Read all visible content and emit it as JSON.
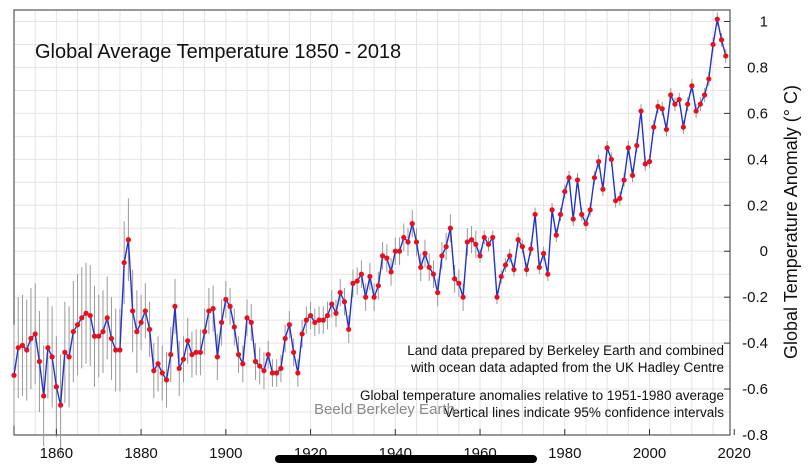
{
  "chart_data": {
    "type": "line",
    "title": "Global Average Temperature 1850 - 2018",
    "xlabel": "",
    "ylabel": "Global Temperature Anomaly (° C)",
    "xlim": [
      1850,
      2019
    ],
    "ylim": [
      -0.8,
      1.05
    ],
    "x_ticks": [
      1860,
      1880,
      1900,
      1920,
      1940,
      1960,
      1980,
      2000,
      2020
    ],
    "y_ticks": [
      -0.8,
      -0.6,
      -0.4,
      -0.2,
      0,
      0.2,
      0.4,
      0.6,
      0.8,
      1
    ],
    "grid": true,
    "series_color": "#2233cc",
    "point_color": "#e8101a",
    "error_bar_color": "#999999",
    "x": [
      1850,
      1851,
      1852,
      1853,
      1854,
      1855,
      1856,
      1857,
      1858,
      1859,
      1860,
      1861,
      1862,
      1863,
      1864,
      1865,
      1866,
      1867,
      1868,
      1869,
      1870,
      1871,
      1872,
      1873,
      1874,
      1875,
      1876,
      1877,
      1878,
      1879,
      1880,
      1881,
      1882,
      1883,
      1884,
      1885,
      1886,
      1887,
      1888,
      1889,
      1890,
      1891,
      1892,
      1893,
      1894,
      1895,
      1896,
      1897,
      1898,
      1899,
      1900,
      1901,
      1902,
      1903,
      1904,
      1905,
      1906,
      1907,
      1908,
      1909,
      1910,
      1911,
      1912,
      1913,
      1914,
      1915,
      1916,
      1917,
      1918,
      1919,
      1920,
      1921,
      1922,
      1923,
      1924,
      1925,
      1926,
      1927,
      1928,
      1929,
      1930,
      1931,
      1932,
      1933,
      1934,
      1935,
      1936,
      1937,
      1938,
      1939,
      1940,
      1941,
      1942,
      1943,
      1944,
      1945,
      1946,
      1947,
      1948,
      1949,
      1950,
      1951,
      1952,
      1953,
      1954,
      1955,
      1956,
      1957,
      1958,
      1959,
      1960,
      1961,
      1962,
      1963,
      1964,
      1965,
      1966,
      1967,
      1968,
      1969,
      1970,
      1971,
      1972,
      1973,
      1974,
      1975,
      1976,
      1977,
      1978,
      1979,
      1980,
      1981,
      1982,
      1983,
      1984,
      1985,
      1986,
      1987,
      1988,
      1989,
      1990,
      1991,
      1992,
      1993,
      1994,
      1995,
      1996,
      1997,
      1998,
      1999,
      2000,
      2001,
      2002,
      2003,
      2004,
      2005,
      2006,
      2007,
      2008,
      2009,
      2010,
      2011,
      2012,
      2013,
      2014,
      2015,
      2016,
      2017,
      2018
    ],
    "values": [
      -0.54,
      -0.42,
      -0.41,
      -0.43,
      -0.38,
      -0.36,
      -0.48,
      -0.63,
      -0.42,
      -0.46,
      -0.59,
      -0.67,
      -0.44,
      -0.46,
      -0.35,
      -0.32,
      -0.29,
      -0.27,
      -0.28,
      -0.37,
      -0.37,
      -0.35,
      -0.29,
      -0.38,
      -0.43,
      -0.43,
      -0.05,
      0.05,
      -0.26,
      -0.35,
      -0.31,
      -0.26,
      -0.34,
      -0.52,
      -0.49,
      -0.53,
      -0.56,
      -0.45,
      -0.24,
      -0.51,
      -0.47,
      -0.39,
      -0.45,
      -0.44,
      -0.44,
      -0.35,
      -0.26,
      -0.25,
      -0.46,
      -0.31,
      -0.21,
      -0.24,
      -0.33,
      -0.45,
      -0.49,
      -0.29,
      -0.31,
      -0.48,
      -0.5,
      -0.52,
      -0.45,
      -0.53,
      -0.53,
      -0.51,
      -0.38,
      -0.32,
      -0.44,
      -0.53,
      -0.36,
      -0.3,
      -0.28,
      -0.31,
      -0.3,
      -0.3,
      -0.28,
      -0.23,
      -0.27,
      -0.18,
      -0.22,
      -0.34,
      -0.14,
      -0.13,
      -0.1,
      -0.2,
      -0.11,
      -0.2,
      -0.15,
      -0.02,
      -0.03,
      -0.09,
      0.0,
      0.0,
      0.06,
      0.04,
      0.12,
      0.04,
      -0.07,
      -0.01,
      -0.07,
      -0.1,
      -0.18,
      -0.02,
      0.02,
      0.1,
      -0.12,
      -0.14,
      -0.2,
      0.04,
      0.05,
      0.03,
      -0.02,
      0.06,
      0.03,
      0.06,
      -0.2,
      -0.11,
      -0.06,
      -0.02,
      -0.08,
      0.05,
      0.02,
      -0.08,
      0.01,
      0.16,
      -0.07,
      -0.01,
      -0.1,
      0.18,
      0.07,
      0.16,
      0.26,
      0.32,
      0.14,
      0.31,
      0.16,
      0.12,
      0.18,
      0.32,
      0.39,
      0.27,
      0.45,
      0.4,
      0.22,
      0.23,
      0.31,
      0.45,
      0.33,
      0.46,
      0.61,
      0.38,
      0.39,
      0.54,
      0.63,
      0.62,
      0.53,
      0.68,
      0.64,
      0.66,
      0.54,
      0.64,
      0.72,
      0.61,
      0.64,
      0.68,
      0.75,
      0.9,
      1.01,
      0.92,
      0.85
    ],
    "errors": [
      0.22,
      0.22,
      0.22,
      0.22,
      0.22,
      0.22,
      0.22,
      0.22,
      0.22,
      0.22,
      0.22,
      0.22,
      0.22,
      0.22,
      0.22,
      0.22,
      0.22,
      0.22,
      0.22,
      0.22,
      0.18,
      0.18,
      0.18,
      0.18,
      0.18,
      0.18,
      0.18,
      0.18,
      0.18,
      0.18,
      0.12,
      0.12,
      0.12,
      0.12,
      0.12,
      0.12,
      0.12,
      0.12,
      0.12,
      0.12,
      0.1,
      0.1,
      0.1,
      0.1,
      0.1,
      0.1,
      0.1,
      0.1,
      0.1,
      0.1,
      0.08,
      0.08,
      0.08,
      0.08,
      0.08,
      0.08,
      0.08,
      0.08,
      0.08,
      0.08,
      0.06,
      0.06,
      0.06,
      0.06,
      0.06,
      0.06,
      0.06,
      0.06,
      0.06,
      0.06,
      0.06,
      0.06,
      0.06,
      0.06,
      0.06,
      0.06,
      0.06,
      0.06,
      0.06,
      0.06,
      0.06,
      0.06,
      0.06,
      0.06,
      0.06,
      0.06,
      0.06,
      0.06,
      0.06,
      0.06,
      0.06,
      0.06,
      0.06,
      0.06,
      0.06,
      0.06,
      0.06,
      0.06,
      0.06,
      0.06,
      0.06,
      0.06,
      0.06,
      0.06,
      0.06,
      0.06,
      0.06,
      0.06,
      0.06,
      0.06,
      0.03,
      0.03,
      0.03,
      0.03,
      0.03,
      0.03,
      0.03,
      0.03,
      0.03,
      0.03,
      0.03,
      0.03,
      0.03,
      0.03,
      0.03,
      0.03,
      0.03,
      0.03,
      0.03,
      0.03,
      0.03,
      0.03,
      0.03,
      0.03,
      0.03,
      0.03,
      0.03,
      0.03,
      0.03,
      0.03,
      0.03,
      0.03,
      0.03,
      0.03,
      0.03,
      0.03,
      0.03,
      0.03,
      0.03,
      0.03,
      0.03,
      0.03,
      0.03,
      0.03,
      0.03,
      0.03,
      0.03,
      0.03,
      0.03,
      0.03,
      0.03,
      0.03,
      0.03,
      0.03,
      0.03,
      0.03,
      0.03,
      0.03,
      0.03
    ],
    "annotations": [
      "Land data prepared by Berkeley Earth and combined",
      "with ocean data adapted from the UK Hadley Centre",
      "Global temperature anomalies relative to 1951-1980 average",
      "Vertical lines indicate 95% confidence intervals"
    ],
    "watermark": "Beeld Berkeley Earth"
  }
}
